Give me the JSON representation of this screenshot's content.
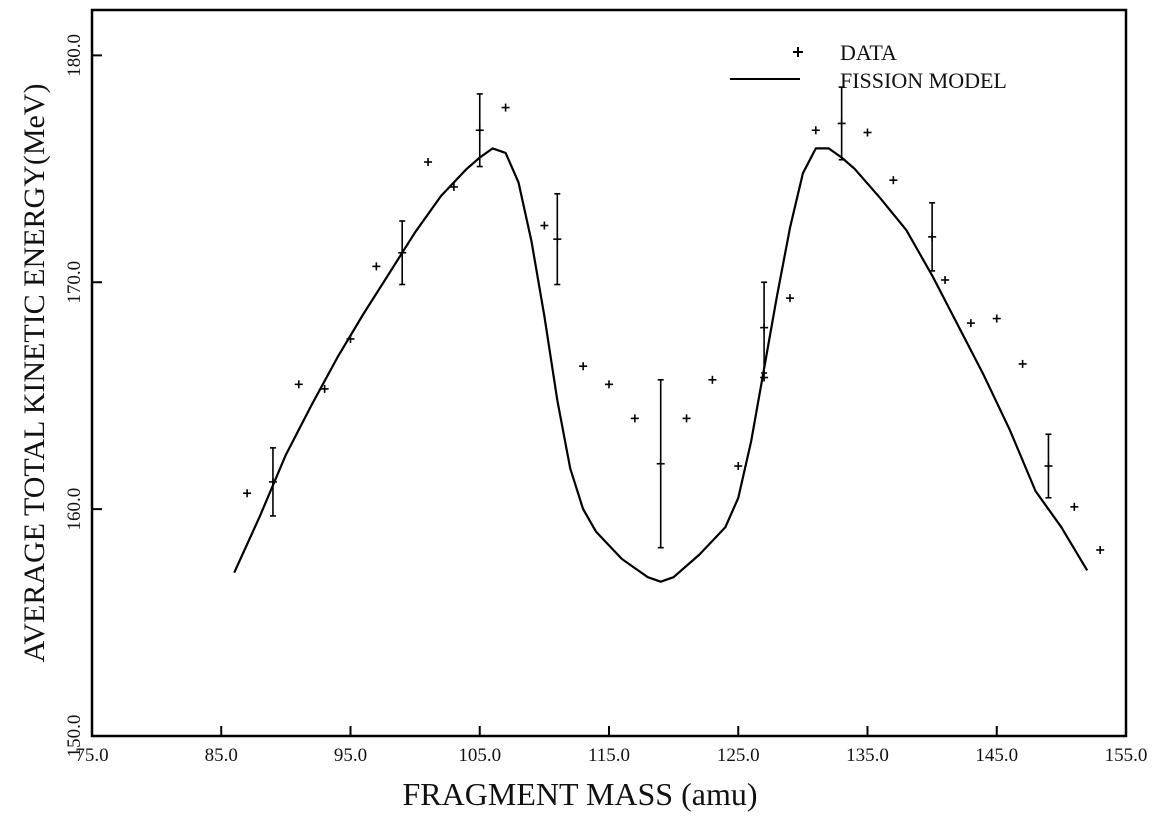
{
  "chart_data": {
    "type": "scatter",
    "xlabel": "FRAGMENT MASS (amu)",
    "ylabel": "AVERAGE TOTAL KINETIC ENERGY(MeV)",
    "xlim": [
      75,
      155
    ],
    "ylim": [
      150,
      182
    ],
    "xticks": [
      "75.0",
      "85.0",
      "95.0",
      "105.0",
      "115.0",
      "125.0",
      "135.0",
      "145.0",
      "155.0"
    ],
    "yticks": [
      "150.0",
      "160.0",
      "170.0",
      "180.0"
    ],
    "legend": {
      "position": "top-right",
      "data_label": "DATA",
      "model_label": "FISSION MODEL"
    },
    "series": [
      {
        "name": "DATA",
        "kind": "points",
        "points": [
          {
            "x": 87,
            "y": 160.7
          },
          {
            "x": 89,
            "y": 161.2,
            "err": 1.5
          },
          {
            "x": 91,
            "y": 165.5
          },
          {
            "x": 93,
            "y": 165.3
          },
          {
            "x": 95,
            "y": 167.5
          },
          {
            "x": 97,
            "y": 170.7
          },
          {
            "x": 99,
            "y": 171.3,
            "err": 1.4
          },
          {
            "x": 101,
            "y": 175.3
          },
          {
            "x": 103,
            "y": 174.2
          },
          {
            "x": 105,
            "y": 176.7,
            "err": 1.6
          },
          {
            "x": 107,
            "y": 177.7
          },
          {
            "x": 110,
            "y": 172.5
          },
          {
            "x": 111,
            "y": 171.9,
            "err": 2.0
          },
          {
            "x": 113,
            "y": 166.3
          },
          {
            "x": 115,
            "y": 165.5
          },
          {
            "x": 117,
            "y": 164.0
          },
          {
            "x": 119,
            "y": 162.0,
            "err": 3.7
          },
          {
            "x": 121,
            "y": 164.0
          },
          {
            "x": 123,
            "y": 165.7
          },
          {
            "x": 125,
            "y": 161.9
          },
          {
            "x": 127,
            "y": 165.8
          },
          {
            "x": 127,
            "y": 168.0,
            "err": 2.0
          },
          {
            "x": 129,
            "y": 169.3
          },
          {
            "x": 131,
            "y": 176.7
          },
          {
            "x": 133,
            "y": 177.0,
            "err": 1.6
          },
          {
            "x": 135,
            "y": 176.6
          },
          {
            "x": 137,
            "y": 174.5
          },
          {
            "x": 140,
            "y": 172.0,
            "err": 1.5
          },
          {
            "x": 141,
            "y": 170.1
          },
          {
            "x": 143,
            "y": 168.2
          },
          {
            "x": 145,
            "y": 168.4
          },
          {
            "x": 147,
            "y": 166.4
          },
          {
            "x": 149,
            "y": 161.9,
            "err": 1.4
          },
          {
            "x": 151,
            "y": 160.1
          },
          {
            "x": 153,
            "y": 158.2
          }
        ]
      },
      {
        "name": "FISSION MODEL",
        "kind": "line",
        "x": [
          86,
          88,
          90,
          92,
          94,
          96,
          98,
          100,
          102,
          104,
          105,
          106,
          107,
          108,
          109,
          110,
          111,
          112,
          113,
          114,
          116,
          118,
          119,
          120,
          122,
          124,
          125,
          126,
          127,
          128,
          129,
          130,
          131,
          132,
          133,
          134,
          136,
          138,
          140,
          142,
          144,
          146,
          148,
          150,
          152
        ],
        "y": [
          157.2,
          159.7,
          162.4,
          164.6,
          166.7,
          168.6,
          170.4,
          172.2,
          173.8,
          175.0,
          175.5,
          175.9,
          175.7,
          174.4,
          171.8,
          168.5,
          164.8,
          161.8,
          160.0,
          159.0,
          157.8,
          157.0,
          156.8,
          157.0,
          158.0,
          159.2,
          160.5,
          163.0,
          166.2,
          169.4,
          172.4,
          174.8,
          175.9,
          175.9,
          175.5,
          175.0,
          173.7,
          172.3,
          170.3,
          168.1,
          165.9,
          163.5,
          160.8,
          159.2,
          157.3
        ]
      }
    ]
  }
}
